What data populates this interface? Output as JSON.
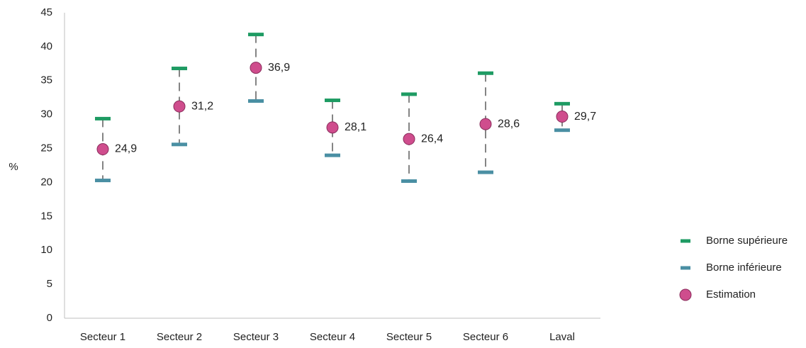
{
  "chart_data": {
    "type": "scatter",
    "title": "",
    "xlabel": "",
    "ylabel": "%",
    "ylim": [
      0,
      45
    ],
    "yticks": [
      "0",
      "5",
      "10",
      "15",
      "20",
      "25",
      "30",
      "35",
      "40",
      "45"
    ],
    "grid": false,
    "legend_position": "right",
    "categories": [
      "Secteur 1",
      "Secteur 2",
      "Secteur 3",
      "Secteur 4",
      "Secteur 5",
      "Secteur 6",
      "Laval"
    ],
    "series": [
      {
        "name": "Borne supérieure",
        "color": "#1e9b63",
        "marker": "dash",
        "values": [
          29.4,
          36.8,
          41.8,
          32.1,
          33.0,
          36.1,
          31.6
        ]
      },
      {
        "name": "Borne inférieure",
        "color": "#4a8fa3",
        "marker": "dash",
        "values": [
          20.3,
          25.6,
          32.0,
          24.0,
          20.2,
          21.5,
          27.7
        ]
      },
      {
        "name": "Estimation",
        "color": "#cf4d8d",
        "marker": "circle",
        "values": [
          24.9,
          31.2,
          36.9,
          28.1,
          26.4,
          28.6,
          29.7
        ]
      }
    ],
    "data_labels": [
      "24,9",
      "31,2",
      "36,9",
      "28,1",
      "26,4",
      "28,6",
      "29,7"
    ]
  }
}
